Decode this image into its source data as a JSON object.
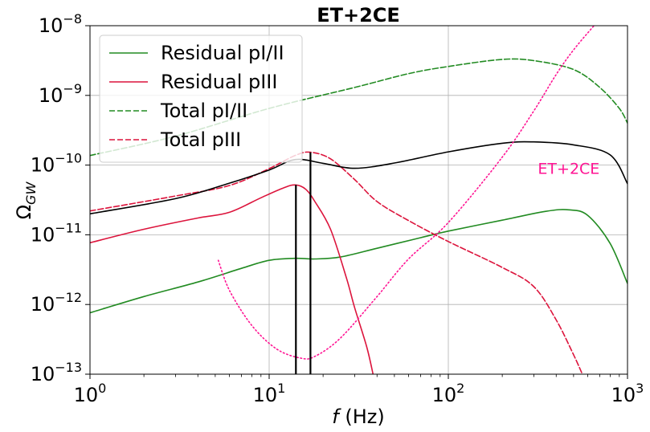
{
  "chart_data": {
    "type": "line",
    "title": "ET+2CE",
    "xlabel": "f (Hz)",
    "ylabel": "Ω_GW",
    "xscale": "log",
    "yscale": "log",
    "xlim": [
      1,
      1000
    ],
    "ylim": [
      1e-13,
      1e-08
    ],
    "grid": true,
    "legend_position": "upper-left",
    "x_ticks": [
      {
        "value": 1,
        "base": "10",
        "exp": "0"
      },
      {
        "value": 10,
        "base": "10",
        "exp": "1"
      },
      {
        "value": 100,
        "base": "10",
        "exp": "2"
      },
      {
        "value": 1000,
        "base": "10",
        "exp": "3"
      }
    ],
    "y_ticks": [
      {
        "value": 1e-13,
        "base": "10",
        "exp": "−13"
      },
      {
        "value": 1e-12,
        "base": "10",
        "exp": "−12"
      },
      {
        "value": 1e-11,
        "base": "10",
        "exp": "−11"
      },
      {
        "value": 1e-10,
        "base": "10",
        "exp": "−10"
      },
      {
        "value": 1e-09,
        "base": "10",
        "exp": "−9"
      },
      {
        "value": 1e-08,
        "base": "10",
        "exp": "−8"
      }
    ],
    "series": [
      {
        "name": "Residual pI/II",
        "color": "#228b22",
        "style": "solid",
        "in_legend": true,
        "points": [
          [
            1,
            7.6e-13
          ],
          [
            2,
            1.3e-12
          ],
          [
            4,
            2.1e-12
          ],
          [
            7,
            3.3e-12
          ],
          [
            10,
            4.3e-12
          ],
          [
            14,
            4.6e-12
          ],
          [
            18,
            4.5e-12
          ],
          [
            25,
            4.8e-12
          ],
          [
            40,
            6.4e-12
          ],
          [
            70,
            9.1e-12
          ],
          [
            100,
            1.13e-11
          ],
          [
            200,
            1.62e-11
          ],
          [
            350,
            2.17e-11
          ],
          [
            470,
            2.28e-11
          ],
          [
            600,
            1.9e-11
          ],
          [
            800,
            7.5e-12
          ],
          [
            1000,
            2e-12
          ]
        ]
      },
      {
        "name": "Residual pIII",
        "color": "#dc143c",
        "style": "solid",
        "in_legend": true,
        "points": [
          [
            1,
            7.7e-12
          ],
          [
            2,
            1.2e-11
          ],
          [
            4,
            1.74e-11
          ],
          [
            6,
            2.1e-11
          ],
          [
            9,
            3.4e-11
          ],
          [
            12,
            4.7e-11
          ],
          [
            14,
            5.2e-11
          ],
          [
            16,
            4.5e-11
          ],
          [
            18,
            3e-11
          ],
          [
            22,
            1.2e-11
          ],
          [
            27,
            2.4e-12
          ],
          [
            30,
            9e-13
          ],
          [
            35,
            2.5e-13
          ],
          [
            38,
            1e-13
          ]
        ]
      },
      {
        "name": "Total pI/II",
        "color": "#228b22",
        "style": "dashed",
        "in_legend": true,
        "points": [
          [
            1,
            1.37e-10
          ],
          [
            3,
            2.6e-10
          ],
          [
            10,
            6.5e-10
          ],
          [
            30,
            1.3e-09
          ],
          [
            60,
            2.05e-09
          ],
          [
            100,
            2.6e-09
          ],
          [
            200,
            3.28e-09
          ],
          [
            300,
            3.15e-09
          ],
          [
            500,
            2.35e-09
          ],
          [
            700,
            1.3e-09
          ],
          [
            900,
            6.5e-10
          ],
          [
            1000,
            4e-10
          ]
        ]
      },
      {
        "name": "Total pIII",
        "color": "#dc143c",
        "style": "dashed",
        "in_legend": true,
        "points": [
          [
            1,
            2.2e-11
          ],
          [
            3,
            3.6e-11
          ],
          [
            6,
            5.1e-11
          ],
          [
            10,
            8.9e-11
          ],
          [
            14,
            1.38e-10
          ],
          [
            17,
            1.53e-10
          ],
          [
            22,
            1.23e-10
          ],
          [
            30,
            6.2e-11
          ],
          [
            40,
            3e-11
          ],
          [
            60,
            1.6e-11
          ],
          [
            100,
            8e-12
          ],
          [
            200,
            3.4e-12
          ],
          [
            300,
            1.8e-12
          ],
          [
            400,
            6e-13
          ],
          [
            500,
            1.9e-13
          ],
          [
            560,
            1e-13
          ]
        ]
      },
      {
        "name": "",
        "color": "#000000",
        "style": "solid",
        "in_legend": false,
        "points": [
          [
            1,
            2e-11
          ],
          [
            3,
            3.3e-11
          ],
          [
            6,
            5.5e-11
          ],
          [
            10,
            8.5e-11
          ],
          [
            14,
            1.2e-10
          ],
          [
            20,
            1.06e-10
          ],
          [
            30,
            9e-11
          ],
          [
            50,
            1.07e-10
          ],
          [
            100,
            1.55e-10
          ],
          [
            200,
            2.06e-10
          ],
          [
            300,
            2.15e-10
          ],
          [
            500,
            1.95e-10
          ],
          [
            800,
            1.4e-10
          ],
          [
            1000,
            5.4e-11
          ]
        ]
      },
      {
        "name": "",
        "color": "#ff1493",
        "style": "dotted",
        "in_legend": false,
        "points": [
          [
            5.2,
            4.3e-12
          ],
          [
            6,
            1.6e-12
          ],
          [
            8,
            5e-13
          ],
          [
            11,
            2.3e-13
          ],
          [
            15,
            1.7e-13
          ],
          [
            18,
            1.8e-13
          ],
          [
            25,
            3.3e-13
          ],
          [
            40,
            1.3e-12
          ],
          [
            60,
            4.5e-12
          ],
          [
            100,
            1.5e-11
          ],
          [
            200,
            1.3e-10
          ],
          [
            300,
            6e-10
          ],
          [
            400,
            2e-09
          ],
          [
            500,
            4.5e-09
          ],
          [
            650,
            1e-08
          ]
        ]
      }
    ],
    "vertical_lines": [
      {
        "x": 14.1,
        "y_top": 5.2e-11,
        "color": "#000000"
      },
      {
        "x": 17.0,
        "y_top": 1.53e-10,
        "color": "#000000"
      }
    ],
    "annotations": [
      {
        "text": "ET+2CE",
        "color": "#ff1493",
        "x": 470,
        "y": 7.5e-11
      }
    ]
  }
}
